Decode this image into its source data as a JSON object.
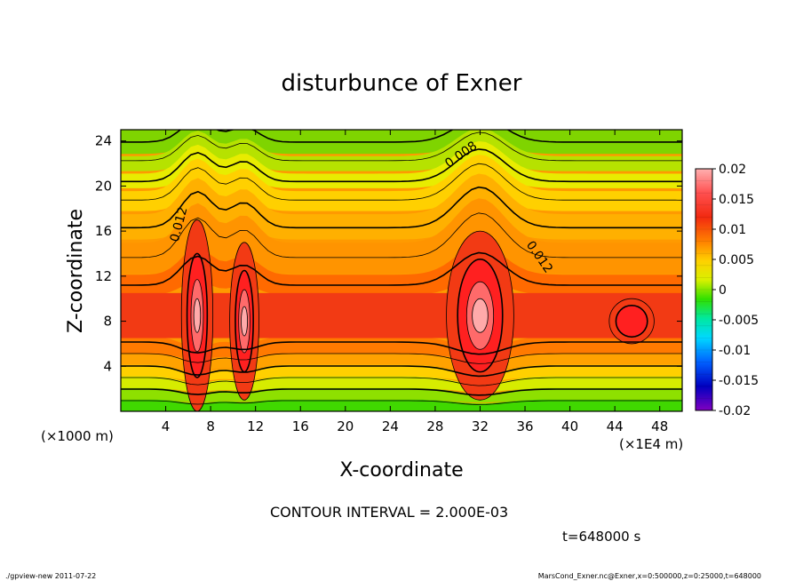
{
  "chart_data": {
    "type": "heatmap",
    "title": "disturbunce of Exner",
    "xlabel": "X-coordinate",
    "ylabel": "Z-coordinate",
    "x_unit_left": "(×1000 m)",
    "x_unit_right": "(×1E4 m)",
    "xlim": [
      0,
      50
    ],
    "ylim": [
      0,
      25
    ],
    "x_ticks": [
      4,
      8,
      12,
      16,
      20,
      24,
      28,
      32,
      36,
      40,
      44,
      48
    ],
    "y_ticks": [
      4,
      8,
      12,
      16,
      20,
      24
    ],
    "colorbar_ticks": [
      "0.02",
      "0.015",
      "0.01",
      "0.005",
      "0",
      "-0.005",
      "-0.01",
      "-0.015",
      "-0.02"
    ],
    "colorbar_range": [
      -0.02,
      0.02
    ],
    "contour_labels": [
      {
        "text": "0.012",
        "x": 5.5,
        "z": 16.5
      },
      {
        "text": "0.008",
        "x": 30.5,
        "z": 22.5
      },
      {
        "text": "0.012",
        "x": 37.0,
        "z": 13.5
      }
    ],
    "features": [
      {
        "name": "peak",
        "x": 6.8,
        "z": 8.5,
        "value": 0.019
      },
      {
        "name": "peak",
        "x": 11.0,
        "z": 8.0,
        "value": 0.019
      },
      {
        "name": "peak",
        "x": 32.0,
        "z": 8.5,
        "value": 0.019
      },
      {
        "name": "local maximum",
        "x": 45.5,
        "z": 8.0,
        "value": 0.015
      }
    ]
  },
  "contour_interval": "CONTOUR INTERVAL = 2.000E-03",
  "time_label": "t=648000 s",
  "footer_left": "./gpview-new  2011-07-22",
  "footer_right": "MarsCond_Exner.nc@Exner,x=0:500000,z=0:25000,t=648000"
}
